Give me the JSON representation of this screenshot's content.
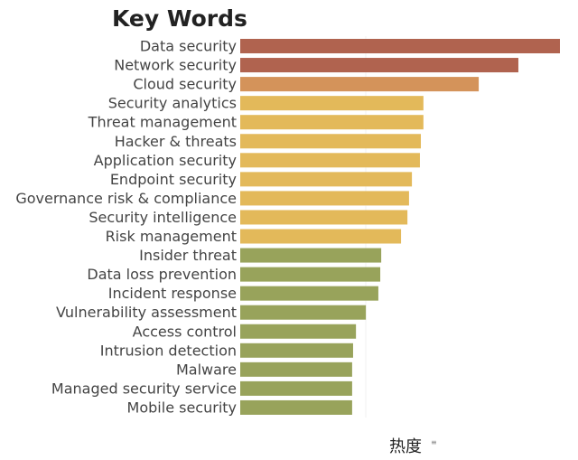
{
  "chart_data": {
    "type": "bar",
    "orientation": "horizontal",
    "title": "Key Words",
    "xlabel": "热度",
    "ylabel": "",
    "axis_ticks_shown": false,
    "grid": false,
    "xlim": [
      0,
      100
    ],
    "categories": [
      "Data security",
      "Network security",
      "Cloud security",
      "Security analytics",
      "Threat management",
      "Hacker & threats",
      "Application security",
      "Endpoint security",
      "Governance risk & compliance",
      "Security intelligence",
      "Risk management",
      "Insider threat",
      "Data loss prevention",
      "Incident response",
      "Vulnerability assessment",
      "Access control",
      "Intrusion detection",
      "Malware",
      "Managed security service",
      "Mobile security"
    ],
    "values": [
      100,
      87,
      74.6,
      57.3,
      57.3,
      56.5,
      56.2,
      53.7,
      52.8,
      52.3,
      50.3,
      44.1,
      43.8,
      43.2,
      39.3,
      36.2,
      35.3,
      35.0,
      35.0,
      35.0
    ],
    "color_groups": [
      "red",
      "red",
      "orange",
      "yellow",
      "yellow",
      "yellow",
      "yellow",
      "yellow",
      "yellow",
      "yellow",
      "yellow",
      "green",
      "green",
      "green",
      "green",
      "green",
      "green",
      "green",
      "green",
      "green"
    ],
    "colors": {
      "red": "#b0634f",
      "orange": "#d4935a",
      "yellow": "#e3b95a",
      "green": "#98a35b"
    }
  },
  "icons": {
    "sort": "sort-icon"
  }
}
